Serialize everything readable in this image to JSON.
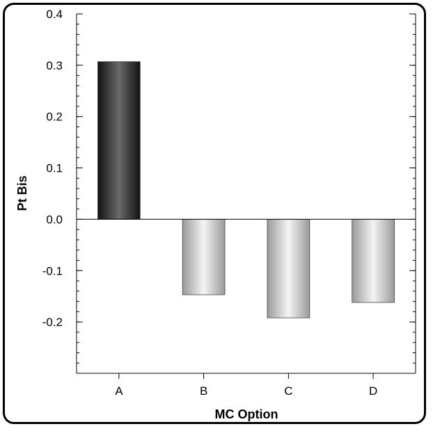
{
  "chart_data": {
    "type": "bar",
    "title": "",
    "xlabel": "MC Option",
    "ylabel": "Pt Bis",
    "categories": [
      "A",
      "B",
      "C",
      "D"
    ],
    "values": [
      0.307,
      -0.147,
      -0.192,
      -0.162
    ],
    "ylim": [
      -0.3,
      0.4
    ],
    "yticks": [
      0.4,
      0.3,
      0.2,
      0.1,
      0.0,
      -0.1,
      -0.2
    ],
    "ytick_labels": [
      "0.4",
      "0.3",
      "0.2",
      "0.1",
      "0.0",
      "-0.1",
      "-0.2"
    ],
    "grid": false,
    "highlight_color": "#2a2a2a",
    "bar_color": "#c8c8c8"
  }
}
